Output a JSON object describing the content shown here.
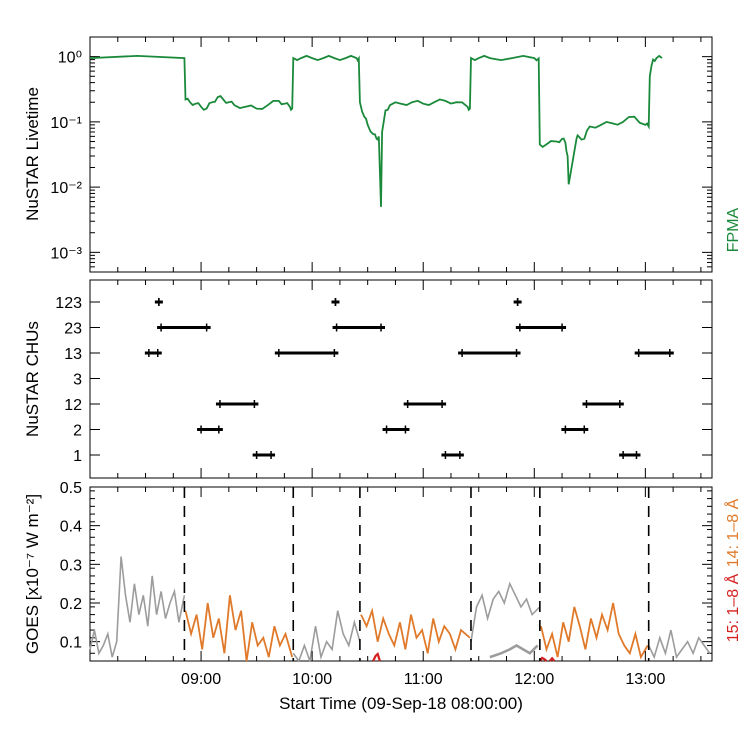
{
  "x_ticks": [
    "09:00",
    "10:00",
    "11:00",
    "12:00",
    "13:00"
  ],
  "x_label": "Start Time (09-Sep-18 08:00:00)",
  "colors": {
    "fpma": "#1a8a3a",
    "goes14": "#e07a2a",
    "goes15": "#d42020",
    "gray": "#9c9c9c",
    "axis": "#000000"
  },
  "chart_data": [
    {
      "type": "line",
      "title": "",
      "ylabel": "NuSTAR Livetime",
      "yscale": "log",
      "ylim": [
        0.0005,
        2.0
      ],
      "xlim": [
        8.0,
        13.6
      ],
      "ytick_labels": [
        "10⁰",
        "10⁻¹",
        "10⁻²",
        "10⁻³"
      ],
      "legend": {
        "label": "FPMA",
        "position": "right-vertical"
      },
      "series": [
        {
          "name": "FPMA",
          "x": [
            8.0,
            8.85,
            8.86,
            8.9,
            8.95,
            9.0,
            9.05,
            9.1,
            9.15,
            9.2,
            9.25,
            9.3,
            9.4,
            9.5,
            9.6,
            9.7,
            9.75,
            9.8,
            9.82,
            9.83,
            9.9,
            10.0,
            10.1,
            10.2,
            10.3,
            10.4,
            10.42,
            10.43,
            10.47,
            10.5,
            10.55,
            10.58,
            10.6,
            10.62,
            10.63,
            10.66,
            10.7,
            10.8,
            10.9,
            11.0,
            11.1,
            11.2,
            11.3,
            11.4,
            11.42,
            11.43,
            11.5,
            11.6,
            11.8,
            12.0,
            12.04,
            12.05,
            12.1,
            12.2,
            12.25,
            12.28,
            12.3,
            12.31,
            12.38,
            12.4,
            12.45,
            12.5,
            12.6,
            12.7,
            12.8,
            12.9,
            13.0,
            13.03,
            13.04,
            13.07,
            13.1,
            13.15
          ],
          "values": [
            0.95,
            0.95,
            0.22,
            0.2,
            0.19,
            0.17,
            0.16,
            0.2,
            0.24,
            0.22,
            0.2,
            0.18,
            0.17,
            0.16,
            0.18,
            0.21,
            0.19,
            0.17,
            0.16,
            0.95,
            0.95,
            0.95,
            0.95,
            0.95,
            0.95,
            0.95,
            0.94,
            0.2,
            0.12,
            0.09,
            0.065,
            0.055,
            0.06,
            0.005,
            0.07,
            0.15,
            0.18,
            0.19,
            0.2,
            0.19,
            0.2,
            0.21,
            0.2,
            0.17,
            0.16,
            0.95,
            0.95,
            0.95,
            0.95,
            0.95,
            0.94,
            0.045,
            0.044,
            0.05,
            0.055,
            0.048,
            0.03,
            0.011,
            0.055,
            0.06,
            0.055,
            0.085,
            0.09,
            0.095,
            0.1,
            0.12,
            0.09,
            0.085,
            0.5,
            0.9,
            0.95,
            0.95
          ]
        }
      ]
    },
    {
      "type": "scatter",
      "title": "",
      "ylabel": "NuSTAR CHUs",
      "categories": [
        "123",
        "23",
        "13",
        "3",
        "12",
        "2",
        "1"
      ],
      "xlim": [
        8.0,
        13.6
      ],
      "segments": [
        {
          "cat": "13",
          "x0": 8.53,
          "x1": 8.61
        },
        {
          "cat": "123",
          "x0": 8.62,
          "x1": 8.62
        },
        {
          "cat": "23",
          "x0": 8.64,
          "x1": 9.05
        },
        {
          "cat": "2",
          "x0": 9.0,
          "x1": 9.16
        },
        {
          "cat": "12",
          "x0": 9.17,
          "x1": 9.48
        },
        {
          "cat": "1",
          "x0": 9.5,
          "x1": 9.63
        },
        {
          "cat": "13",
          "x0": 9.7,
          "x1": 10.2
        },
        {
          "cat": "123",
          "x0": 10.21,
          "x1": 10.21
        },
        {
          "cat": "23",
          "x0": 10.22,
          "x1": 10.62
        },
        {
          "cat": "2",
          "x0": 10.67,
          "x1": 10.84
        },
        {
          "cat": "12",
          "x0": 10.86,
          "x1": 11.17
        },
        {
          "cat": "1",
          "x0": 11.2,
          "x1": 11.33
        },
        {
          "cat": "13",
          "x0": 11.35,
          "x1": 11.84
        },
        {
          "cat": "123",
          "x0": 11.85,
          "x1": 11.85
        },
        {
          "cat": "23",
          "x0": 11.87,
          "x1": 12.25
        },
        {
          "cat": "2",
          "x0": 12.28,
          "x1": 12.45
        },
        {
          "cat": "12",
          "x0": 12.47,
          "x1": 12.77
        },
        {
          "cat": "1",
          "x0": 12.8,
          "x1": 12.92
        },
        {
          "cat": "13",
          "x0": 12.94,
          "x1": 13.22
        }
      ]
    },
    {
      "type": "line",
      "title": "",
      "ylabel": "GOES [x10⁻⁷ W m⁻²]",
      "ylim": [
        0.05,
        0.5
      ],
      "xlim": [
        8.0,
        13.6
      ],
      "ytick_labels": [
        "0.1",
        "0.2",
        "0.3",
        "0.4",
        "0.5"
      ],
      "vlines": [
        8.85,
        9.83,
        10.43,
        11.43,
        12.05,
        13.03
      ],
      "legend": [
        {
          "label": "14: 1–8 Å",
          "position": "right-vertical"
        },
        {
          "label": "15: 1–8 Å",
          "position": "right-vertical"
        }
      ],
      "series": [
        {
          "name": "14: 1–8 Å outside windows",
          "segments": [
            {
              "x": [
                8.0,
                8.04,
                8.08,
                8.12,
                8.16,
                8.2,
                8.24,
                8.28,
                8.32,
                8.36,
                8.4,
                8.44,
                8.48,
                8.52,
                8.56,
                8.6,
                8.64,
                8.68,
                8.72,
                8.76,
                8.8,
                8.85
              ],
              "values": [
                0.08,
                0.13,
                0.07,
                0.09,
                0.12,
                0.06,
                0.1,
                0.32,
                0.22,
                0.15,
                0.25,
                0.17,
                0.22,
                0.14,
                0.27,
                0.17,
                0.23,
                0.16,
                0.2,
                0.23,
                0.15,
                0.22
              ]
            },
            {
              "x": [
                9.83,
                9.88,
                9.93,
                9.98,
                10.03,
                10.08,
                10.13,
                10.18,
                10.23,
                10.28,
                10.33,
                10.38,
                10.43
              ],
              "values": [
                0.07,
                0.05,
                0.09,
                0.05,
                0.14,
                0.06,
                0.1,
                0.08,
                0.18,
                0.12,
                0.09,
                0.15,
                0.1
              ]
            },
            {
              "x": [
                11.43,
                11.48,
                11.53,
                11.58,
                11.63,
                11.68,
                11.73,
                11.78,
                11.83,
                11.88,
                11.93,
                11.98,
                12.05
              ],
              "values": [
                0.1,
                0.19,
                0.22,
                0.16,
                0.21,
                0.23,
                0.2,
                0.25,
                0.22,
                0.19,
                0.21,
                0.17,
                0.19
              ]
            },
            {
              "x": [
                13.03,
                13.08,
                13.13,
                13.18,
                13.23,
                13.28,
                13.33,
                13.38,
                13.43,
                13.48,
                13.53,
                13.58
              ],
              "values": [
                0.09,
                0.06,
                0.11,
                0.07,
                0.13,
                0.06,
                0.08,
                0.1,
                0.07,
                0.11,
                0.09,
                0.07
              ]
            }
          ]
        },
        {
          "name": "14: 1–8 Å",
          "segments": [
            {
              "x": [
                8.86,
                8.91,
                8.96,
                9.01,
                9.06,
                9.11,
                9.16,
                9.21,
                9.26,
                9.31,
                9.36,
                9.41,
                9.46,
                9.51,
                9.56,
                9.61,
                9.66,
                9.71,
                9.76,
                9.82
              ],
              "values": [
                0.18,
                0.12,
                0.17,
                0.08,
                0.2,
                0.11,
                0.16,
                0.07,
                0.22,
                0.13,
                0.18,
                0.05,
                0.15,
                0.09,
                0.11,
                0.06,
                0.14,
                0.09,
                0.12,
                0.06
              ]
            },
            {
              "x": [
                10.44,
                10.49,
                10.54,
                10.59,
                10.64,
                10.69,
                10.74,
                10.79,
                10.84,
                10.89,
                10.94,
                10.99,
                11.04,
                11.09,
                11.14,
                11.19,
                11.24,
                11.29,
                11.34,
                11.42
              ],
              "values": [
                0.17,
                0.14,
                0.18,
                0.1,
                0.16,
                0.12,
                0.09,
                0.15,
                0.08,
                0.17,
                0.11,
                0.13,
                0.07,
                0.16,
                0.1,
                0.14,
                0.12,
                0.08,
                0.13,
                0.11
              ]
            },
            {
              "x": [
                12.06,
                12.11,
                12.16,
                12.21,
                12.26,
                12.31,
                12.36,
                12.41,
                12.46,
                12.51,
                12.56,
                12.61,
                12.66,
                12.71,
                12.76,
                12.81,
                12.86,
                12.91,
                12.96,
                13.02
              ],
              "values": [
                0.14,
                0.08,
                0.12,
                0.06,
                0.15,
                0.1,
                0.19,
                0.14,
                0.08,
                0.16,
                0.11,
                0.17,
                0.13,
                0.2,
                0.12,
                0.09,
                0.07,
                0.12,
                0.06,
                0.09
              ]
            }
          ]
        },
        {
          "name": "15: 1–8 Å",
          "segments": [
            {
              "x": [
                10.55,
                10.57,
                10.59,
                10.61
              ],
              "values": [
                0.05,
                0.063,
                0.068,
                0.05
              ]
            },
            {
              "x": [
                12.05,
                12.07,
                12.09,
                12.11
              ],
              "values": [
                0.05,
                0.058,
                0.055,
                0.05
              ]
            },
            {
              "x": [
                12.14,
                12.16,
                12.18
              ],
              "values": [
                0.05,
                0.057,
                0.05
              ]
            }
          ]
        },
        {
          "name": "15: 1–8 Å outside windows",
          "segments": [
            {
              "x": [
                11.6,
                11.7,
                11.78,
                11.84,
                11.9,
                11.96,
                12.03
              ],
              "values": [
                0.06,
                0.07,
                0.08,
                0.09,
                0.08,
                0.07,
                0.09
              ]
            }
          ]
        }
      ]
    }
  ]
}
